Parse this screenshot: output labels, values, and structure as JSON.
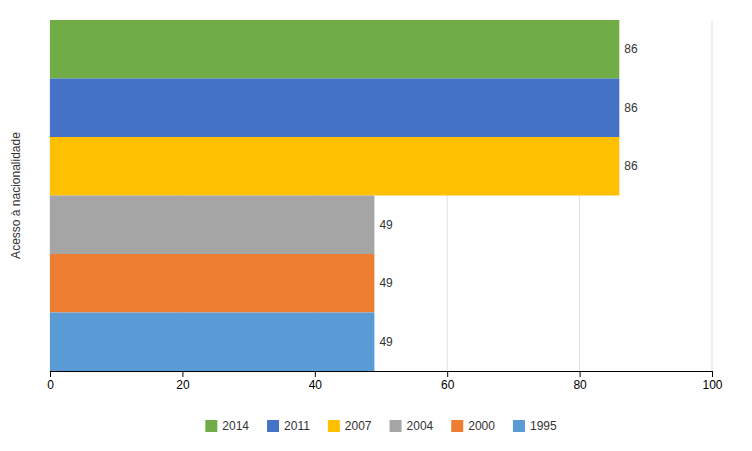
{
  "chart_data": {
    "type": "bar",
    "orientation": "horizontal",
    "y_label": "Acesso à nacionalidade",
    "categories": [
      "2014",
      "2011",
      "2007",
      "2004",
      "2000",
      "1995"
    ],
    "values": [
      86,
      86,
      86,
      49,
      49,
      49
    ],
    "colors": [
      "#70ad47",
      "#4472c4",
      "#ffc000",
      "#a5a5a5",
      "#ed7d31",
      "#5b9bd5"
    ],
    "xlim": [
      0,
      100
    ],
    "xticks": [
      0,
      20,
      40,
      60,
      80,
      100
    ],
    "grid": true,
    "data_labels": true,
    "tick_labels": "x",
    "legend": "bottom"
  }
}
